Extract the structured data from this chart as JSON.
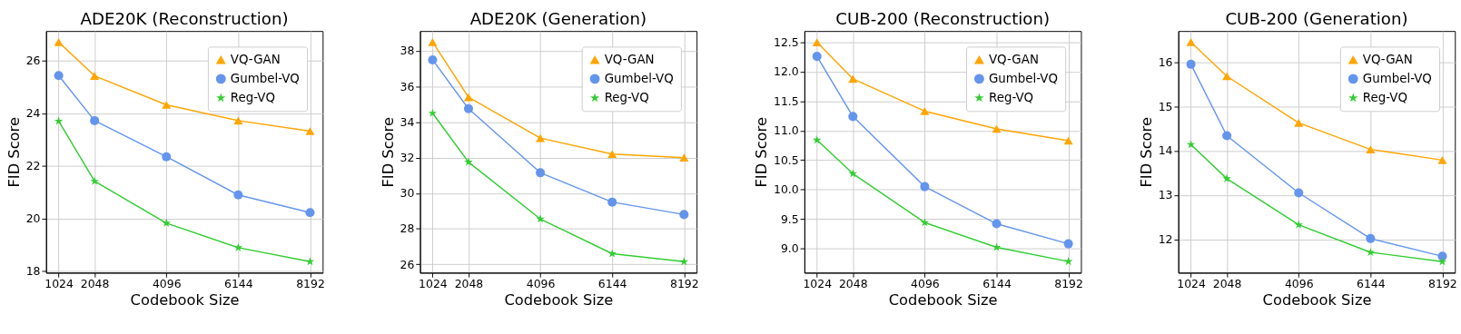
{
  "chart_data": [
    {
      "type": "line",
      "title": "ADE20K (Reconstruction)",
      "xlabel": "Codebook Size",
      "ylabel": "FID Score",
      "x": [
        1024,
        2048,
        4096,
        6144,
        8192
      ],
      "xlim": [
        666,
        8550
      ],
      "xticks": [
        1024,
        2048,
        4096,
        6144,
        8192
      ],
      "ylim": [
        17.95,
        27.12
      ],
      "yticks": [
        18,
        20,
        22,
        24,
        26
      ],
      "grid": true,
      "legend": "top right",
      "series": [
        {
          "name": "VQ-GAN",
          "color": "#ffa500",
          "marker": "triangle",
          "values": [
            26.7,
            25.42,
            24.32,
            23.72,
            23.32
          ]
        },
        {
          "name": "Gumbel-VQ",
          "color": "#6495ed",
          "marker": "circle",
          "values": [
            25.43,
            23.72,
            22.35,
            20.9,
            20.23
          ]
        },
        {
          "name": "Reg-VQ",
          "color": "#32cd32",
          "marker": "star",
          "values": [
            23.7,
            21.42,
            19.83,
            18.9,
            18.37
          ]
        }
      ]
    },
    {
      "type": "line",
      "title": "ADE20K (Generation)",
      "xlabel": "Codebook Size",
      "ylabel": "FID Score",
      "x": [
        1024,
        2048,
        4096,
        6144,
        8192
      ],
      "xlim": [
        666,
        8550
      ],
      "xticks": [
        1024,
        2048,
        4096,
        6144,
        8192
      ],
      "ylim": [
        25.53,
        39.12
      ],
      "yticks": [
        26,
        28,
        30,
        32,
        34,
        36,
        38
      ],
      "grid": true,
      "legend": "top right",
      "series": [
        {
          "name": "VQ-GAN",
          "color": "#ffa500",
          "marker": "triangle",
          "values": [
            38.5,
            35.4,
            33.1,
            32.2,
            32.0
          ]
        },
        {
          "name": "Gumbel-VQ",
          "color": "#6495ed",
          "marker": "circle",
          "values": [
            37.5,
            34.75,
            31.15,
            29.5,
            28.8
          ]
        },
        {
          "name": "Reg-VQ",
          "color": "#32cd32",
          "marker": "star",
          "values": [
            34.5,
            31.75,
            28.55,
            26.6,
            26.15
          ]
        }
      ]
    },
    {
      "type": "line",
      "title": "CUB-200 (Reconstruction)",
      "xlabel": "Codebook Size",
      "ylabel": "FID Score",
      "x": [
        1024,
        2048,
        4096,
        6144,
        8192
      ],
      "xlim": [
        666,
        8550
      ],
      "xticks": [
        1024,
        2048,
        4096,
        6144,
        8192
      ],
      "ylim": [
        8.59,
        12.69
      ],
      "yticks": [
        {
          "value": 9,
          "label": "9.0"
        },
        9.5,
        {
          "value": 10,
          "label": "10.0"
        },
        10.5,
        {
          "value": 11,
          "label": "11.0"
        },
        11.5,
        {
          "value": 12,
          "label": "12.0"
        },
        12.5
      ],
      "grid": true,
      "legend": "top right",
      "series": [
        {
          "name": "VQ-GAN",
          "color": "#ffa500",
          "marker": "triangle",
          "values": [
            12.5,
            11.88,
            11.33,
            11.03,
            10.83
          ]
        },
        {
          "name": "Gumbel-VQ",
          "color": "#6495ed",
          "marker": "circle",
          "values": [
            12.26,
            11.24,
            10.05,
            9.42,
            9.08
          ]
        },
        {
          "name": "Reg-VQ",
          "color": "#32cd32",
          "marker": "star",
          "values": [
            10.84,
            10.27,
            9.44,
            9.02,
            8.78
          ]
        }
      ]
    },
    {
      "type": "line",
      "title": "CUB-200 (Generation)",
      "xlabel": "Codebook Size",
      "ylabel": "FID Score",
      "x": [
        1024,
        2048,
        4096,
        6144,
        8192
      ],
      "xlim": [
        666,
        8550
      ],
      "xticks": [
        1024,
        2048,
        4096,
        6144,
        8192
      ],
      "ylim": [
        11.25,
        16.7
      ],
      "yticks": [
        12,
        13,
        14,
        15,
        16
      ],
      "grid": true,
      "legend": "top right",
      "series": [
        {
          "name": "VQ-GAN",
          "color": "#ffa500",
          "marker": "triangle",
          "values": [
            16.45,
            15.68,
            14.63,
            14.03,
            13.79
          ]
        },
        {
          "name": "Gumbel-VQ",
          "color": "#6495ed",
          "marker": "circle",
          "values": [
            15.95,
            14.34,
            13.05,
            12.02,
            11.62
          ]
        },
        {
          "name": "Reg-VQ",
          "color": "#32cd32",
          "marker": "star",
          "values": [
            14.14,
            13.37,
            12.33,
            11.71,
            11.5
          ]
        }
      ]
    }
  ]
}
